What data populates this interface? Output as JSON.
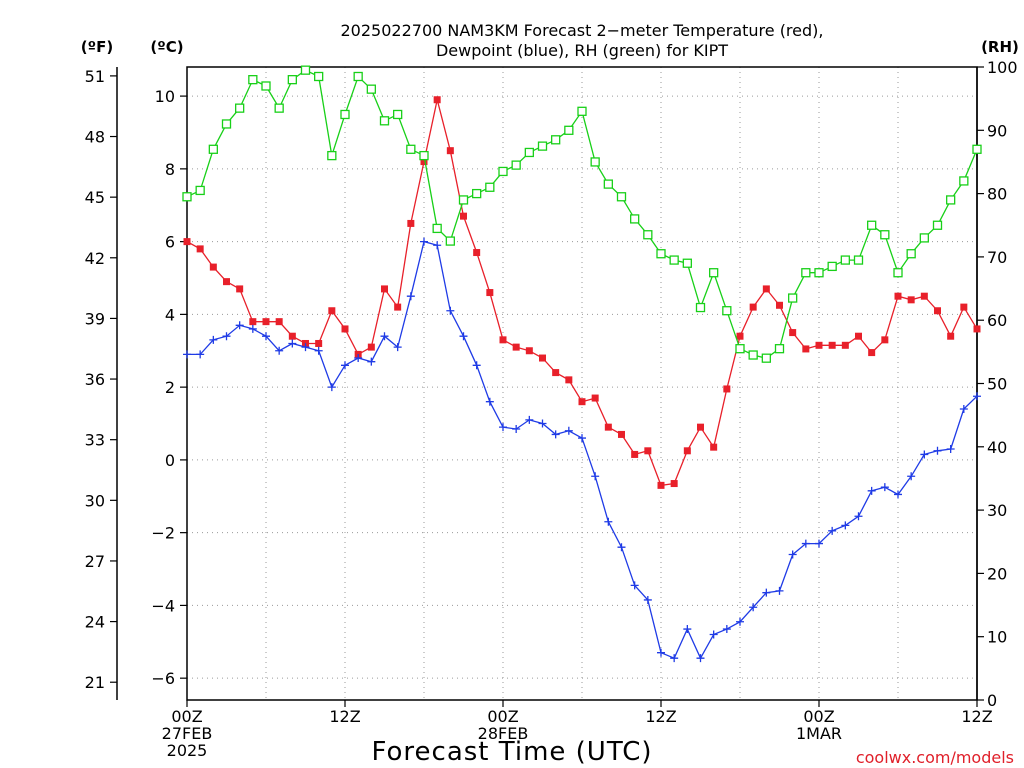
{
  "chart_data": {
    "type": "line",
    "title": {
      "line1": "2025022700 NAM3KM Forecast 2−meter Temperature (red),",
      "line2": "Dewpoint (blue), RH (green) for KIPT"
    },
    "xlabel": "Forecast Time (UTC)",
    "axis_titles": {
      "fahrenheit": "(ºF)",
      "celsius": "(ºC)",
      "rh": "(RH)"
    },
    "x_ticks": [
      {
        "hour": 0,
        "line1": "00Z",
        "line2": "27FEB",
        "line3": "2025"
      },
      {
        "hour": 12,
        "line1": "12Z",
        "line2": "",
        "line3": ""
      },
      {
        "hour": 24,
        "line1": "00Z",
        "line2": "28FEB",
        "line3": ""
      },
      {
        "hour": 36,
        "line1": "12Z",
        "line2": "",
        "line3": ""
      },
      {
        "hour": 48,
        "line1": "00Z",
        "line2": "1MAR",
        "line3": ""
      },
      {
        "hour": 60,
        "line1": "12Z",
        "line2": "",
        "line3": ""
      }
    ],
    "xlim_hours": [
      0,
      60
    ],
    "celsius_ticks": [
      "10",
      "8",
      "6",
      "4",
      "2",
      "0",
      "−2",
      "−4",
      "−6"
    ],
    "celsius_values": [
      10,
      8,
      6,
      4,
      2,
      0,
      -2,
      -4,
      -6
    ],
    "fahrenheit_ticks": [
      "51",
      "48",
      "45",
      "42",
      "39",
      "36",
      "33",
      "30",
      "27",
      "24",
      "21"
    ],
    "fahrenheit_values": [
      51,
      48,
      45,
      42,
      39,
      36,
      33,
      30,
      27,
      24,
      21
    ],
    "rh_ticks": [
      "100",
      "90",
      "80",
      "70",
      "60",
      "50",
      "40",
      "30",
      "20",
      "10",
      "0"
    ],
    "rh_values": [
      100,
      90,
      80,
      70,
      60,
      50,
      40,
      30,
      20,
      10,
      0
    ],
    "ylim_celsius": [
      -6.6,
      10.8
    ],
    "ylim_rh": [
      0,
      100
    ],
    "colors": {
      "temperature": "#e8202a",
      "dewpoint": "#1f3be6",
      "rh": "#18d018"
    },
    "series": [
      {
        "name": "2−meter Temperature",
        "unit": "celsius",
        "marker": "filled-square",
        "values": [
          6.0,
          5.8,
          5.3,
          4.9,
          4.7,
          3.8,
          3.8,
          3.8,
          3.4,
          3.2,
          3.2,
          4.1,
          3.6,
          2.9,
          3.1,
          4.7,
          4.2,
          6.5,
          8.2,
          9.9,
          8.5,
          6.7,
          5.7,
          4.6,
          3.3,
          3.1,
          3.0,
          2.8,
          2.4,
          2.2,
          1.6,
          1.7,
          0.9,
          0.7,
          0.15,
          0.25,
          -0.7,
          -0.65,
          0.25,
          0.9,
          0.35,
          1.95,
          3.4,
          4.2,
          4.7,
          4.25,
          3.5,
          3.05,
          3.15,
          3.15,
          3.15,
          3.4,
          2.95,
          3.3,
          4.5,
          4.4,
          4.5,
          4.1,
          3.4,
          4.2,
          3.6
        ]
      },
      {
        "name": "Dewpoint",
        "unit": "celsius",
        "marker": "plus",
        "values": [
          2.9,
          2.9,
          3.3,
          3.4,
          3.7,
          3.6,
          3.4,
          3.0,
          3.2,
          3.1,
          3.0,
          2.0,
          2.6,
          2.8,
          2.7,
          3.4,
          3.1,
          4.5,
          6.0,
          5.9,
          4.1,
          3.4,
          2.6,
          1.6,
          0.9,
          0.85,
          1.1,
          1.0,
          0.7,
          0.8,
          0.6,
          -0.45,
          -1.7,
          -2.4,
          -3.45,
          -3.85,
          -5.3,
          -5.45,
          -4.65,
          -5.45,
          -4.8,
          -4.65,
          -4.45,
          -4.05,
          -3.65,
          -3.6,
          -2.6,
          -2.3,
          -2.3,
          -1.95,
          -1.8,
          -1.55,
          -0.85,
          -0.75,
          -0.95,
          -0.45,
          0.15,
          0.25,
          0.3,
          1.4,
          1.75
        ]
      },
      {
        "name": "RH",
        "unit": "rh",
        "marker": "open-square",
        "values": [
          79.5,
          80.5,
          87.0,
          91.0,
          93.5,
          98.0,
          97.0,
          93.5,
          98.0,
          99.5,
          98.5,
          86.0,
          92.5,
          98.5,
          96.5,
          91.5,
          92.5,
          87.0,
          86.0,
          74.5,
          72.5,
          79.0,
          80.0,
          81.0,
          83.5,
          84.5,
          86.5,
          87.5,
          88.5,
          90.0,
          93.0,
          85.0,
          81.5,
          79.5,
          76.0,
          73.5,
          70.5,
          69.5,
          69.0,
          62.0,
          67.5,
          61.5,
          55.5,
          54.5,
          54.0,
          55.5,
          63.5,
          67.5,
          67.5,
          68.5,
          69.5,
          69.5,
          75.0,
          73.5,
          67.5,
          70.5,
          73.0,
          75.0,
          79.0,
          82.0,
          87.0
        ]
      }
    ]
  },
  "watermark": "coolwx.com/models"
}
